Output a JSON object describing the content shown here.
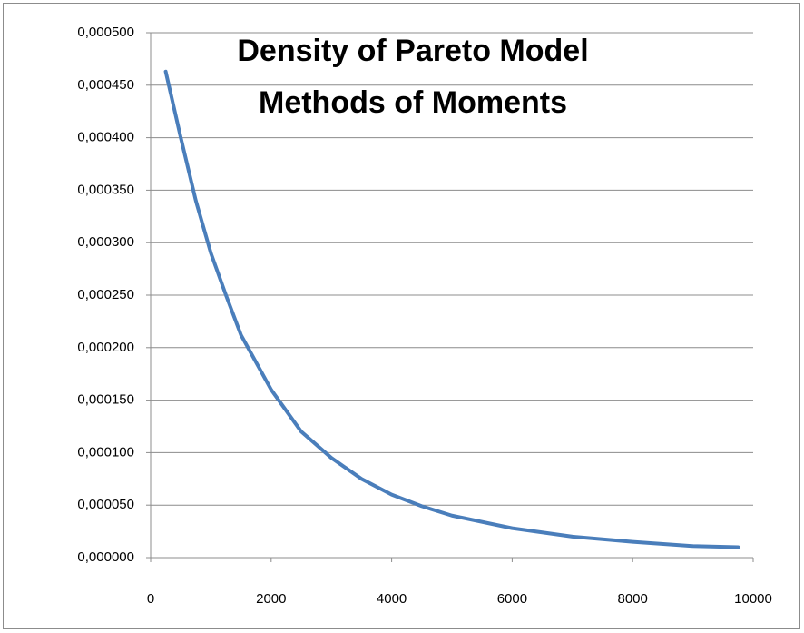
{
  "chart_data": {
    "type": "line",
    "title": "Density of Pareto Model",
    "subtitle": "Methods of Moments",
    "x": [
      250,
      500,
      750,
      1000,
      1250,
      1500,
      2000,
      2500,
      3000,
      3500,
      4000,
      4500,
      5000,
      6000,
      7000,
      8000,
      9000,
      9750
    ],
    "values": [
      0.000463,
      0.0004,
      0.00034,
      0.00029,
      0.00025,
      0.000212,
      0.00016,
      0.00012,
      9.5e-05,
      7.5e-05,
      6e-05,
      4.9e-05,
      4e-05,
      2.8e-05,
      2e-05,
      1.5e-05,
      1.1e-05,
      1e-05
    ],
    "color": "#4a7ebb",
    "xlim": [
      0,
      10000
    ],
    "xticks": [
      0,
      2000,
      4000,
      6000,
      8000,
      10000
    ],
    "ylim": [
      0,
      0.0005
    ],
    "yticks": [
      {
        "value": 0,
        "label": "0,000000"
      },
      {
        "value": 5e-05,
        "label": "0,000050"
      },
      {
        "value": 0.0001,
        "label": "0,000100"
      },
      {
        "value": 0.00015,
        "label": "0,000150"
      },
      {
        "value": 0.0002,
        "label": "0,000200"
      },
      {
        "value": 0.00025,
        "label": "0,000250"
      },
      {
        "value": 0.0003,
        "label": "0,000300"
      },
      {
        "value": 0.00035,
        "label": "0,000350"
      },
      {
        "value": 0.0004,
        "label": "0,000400"
      },
      {
        "value": 0.00045,
        "label": "0,000450"
      },
      {
        "value": 0.0005,
        "label": "0,000500"
      }
    ],
    "grid": true
  }
}
